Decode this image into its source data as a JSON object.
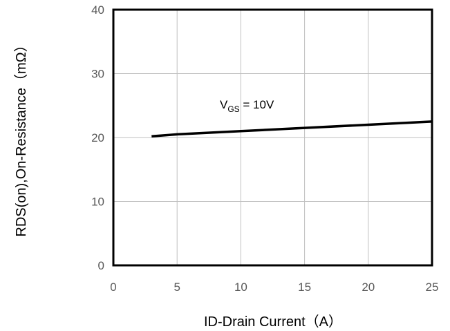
{
  "chart_data": {
    "type": "line",
    "xlabel": "ID-Drain Current（A）",
    "ylabel": "RDS(on),On-Resistance（mΩ）",
    "xlim": [
      0,
      25
    ],
    "ylim": [
      0,
      40
    ],
    "x_ticks": [
      0,
      5,
      10,
      15,
      20,
      25
    ],
    "y_ticks": [
      0,
      10,
      20,
      30,
      40
    ],
    "x_tick_labels": [
      "0",
      "5",
      "10",
      "15",
      "20",
      "25"
    ],
    "y_tick_labels": [
      "0",
      "10",
      "20",
      "30",
      "40"
    ],
    "grid": true,
    "series": [
      {
        "x": [
          3,
          5,
          10,
          15,
          20,
          25
        ],
        "y": [
          20.2,
          20.5,
          21.0,
          21.5,
          22.0,
          22.5
        ],
        "color": "#000000"
      }
    ],
    "annotation": {
      "main": "V",
      "sub": "GS",
      "rest": " = 10V"
    }
  }
}
